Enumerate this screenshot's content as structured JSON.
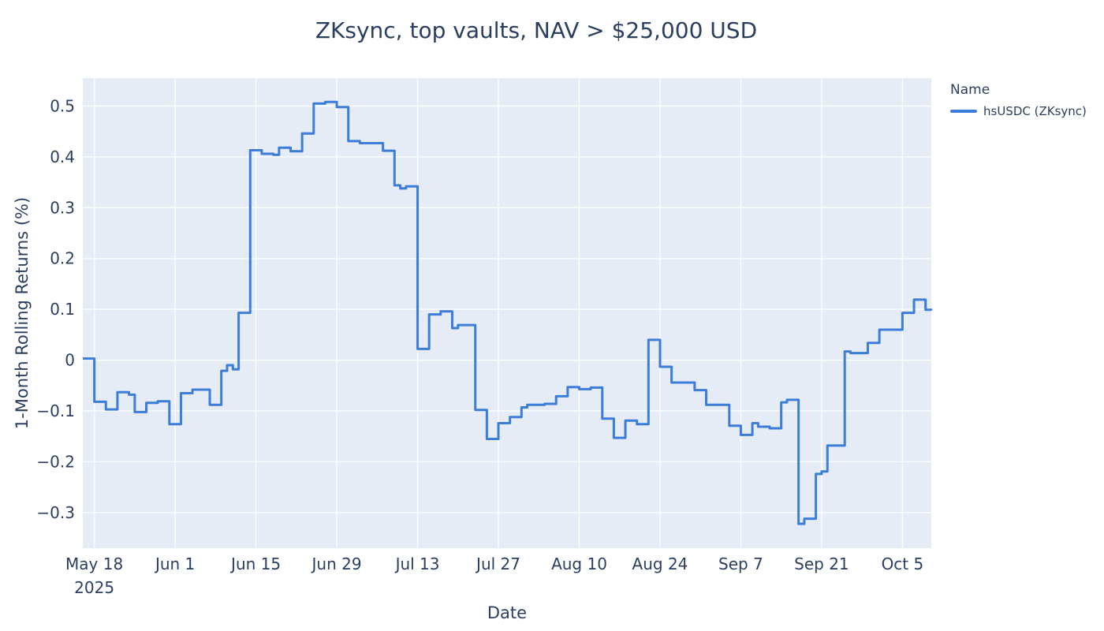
{
  "legend": {
    "title": "Name",
    "position": "right",
    "items": [
      {
        "label": "hsUSDC (ZKsync)",
        "color": "#3b7dd8"
      }
    ]
  },
  "colors": {
    "paper_bg": "#ffffff",
    "plot_bg": "#e5ecf6",
    "grid": "#ffffff",
    "text": "#2a3f5f",
    "line": "#3b7dd8"
  },
  "chart_data": {
    "type": "line",
    "line_shape": "step-after",
    "title": "ZKsync, top vaults, NAV > $25,000 USD",
    "xlabel": "Date",
    "ylabel": "1-Month Rolling Returns (%)",
    "x_range": [
      "2025-05-16",
      "2025-10-10"
    ],
    "ylim": [
      -0.37,
      0.555
    ],
    "grid": true,
    "legend_position": "right",
    "x_ticks": [
      {
        "date": "2025-05-18",
        "label": "May 18",
        "sublabel": "2025"
      },
      {
        "date": "2025-06-01",
        "label": "Jun 1"
      },
      {
        "date": "2025-06-15",
        "label": "Jun 15"
      },
      {
        "date": "2025-06-29",
        "label": "Jun 29"
      },
      {
        "date": "2025-07-13",
        "label": "Jul 13"
      },
      {
        "date": "2025-07-27",
        "label": "Jul 27"
      },
      {
        "date": "2025-08-10",
        "label": "Aug 10"
      },
      {
        "date": "2025-08-24",
        "label": "Aug 24"
      },
      {
        "date": "2025-09-07",
        "label": "Sep 7"
      },
      {
        "date": "2025-09-21",
        "label": "Sep 21"
      },
      {
        "date": "2025-10-05",
        "label": "Oct 5"
      }
    ],
    "y_ticks": [
      {
        "value": 0.5,
        "label": "0.5"
      },
      {
        "value": 0.4,
        "label": "0.4"
      },
      {
        "value": 0.3,
        "label": "0.3"
      },
      {
        "value": 0.2,
        "label": "0.2"
      },
      {
        "value": 0.1,
        "label": "0.1"
      },
      {
        "value": 0,
        "label": "0"
      },
      {
        "value": -0.1,
        "label": "−0.1"
      },
      {
        "value": -0.2,
        "label": "−0.2"
      },
      {
        "value": -0.3,
        "label": "−0.3"
      }
    ],
    "series": [
      {
        "name": "hsUSDC (ZKsync)",
        "color": "#3b7dd8",
        "points": [
          [
            "2025-05-16",
            0.003
          ],
          [
            "2025-05-18",
            -0.082
          ],
          [
            "2025-05-20",
            -0.097
          ],
          [
            "2025-05-22",
            -0.063
          ],
          [
            "2025-05-24",
            -0.068
          ],
          [
            "2025-05-25",
            -0.102
          ],
          [
            "2025-05-27",
            -0.084
          ],
          [
            "2025-05-29",
            -0.081
          ],
          [
            "2025-05-31",
            -0.126
          ],
          [
            "2025-06-02",
            -0.065
          ],
          [
            "2025-06-04",
            -0.058
          ],
          [
            "2025-06-07",
            -0.088
          ],
          [
            "2025-06-09",
            -0.021
          ],
          [
            "2025-06-10",
            -0.01
          ],
          [
            "2025-06-11",
            -0.018
          ],
          [
            "2025-06-12",
            0.093
          ],
          [
            "2025-06-14",
            0.413
          ],
          [
            "2025-06-16",
            0.406
          ],
          [
            "2025-06-18",
            0.404
          ],
          [
            "2025-06-19",
            0.418
          ],
          [
            "2025-06-21",
            0.411
          ],
          [
            "2025-06-23",
            0.446
          ],
          [
            "2025-06-25",
            0.505
          ],
          [
            "2025-06-27",
            0.508
          ],
          [
            "2025-06-29",
            0.498
          ],
          [
            "2025-07-01",
            0.431
          ],
          [
            "2025-07-03",
            0.427
          ],
          [
            "2025-07-07",
            0.412
          ],
          [
            "2025-07-09",
            0.344
          ],
          [
            "2025-07-10",
            0.338
          ],
          [
            "2025-07-11",
            0.342
          ],
          [
            "2025-07-13",
            0.022
          ],
          [
            "2025-07-15",
            0.09
          ],
          [
            "2025-07-17",
            0.096
          ],
          [
            "2025-07-19",
            0.063
          ],
          [
            "2025-07-20",
            0.069
          ],
          [
            "2025-07-23",
            -0.098
          ],
          [
            "2025-07-25",
            -0.155
          ],
          [
            "2025-07-27",
            -0.124
          ],
          [
            "2025-07-29",
            -0.112
          ],
          [
            "2025-07-31",
            -0.093
          ],
          [
            "2025-08-01",
            -0.088
          ],
          [
            "2025-08-04",
            -0.086
          ],
          [
            "2025-08-06",
            -0.071
          ],
          [
            "2025-08-08",
            -0.053
          ],
          [
            "2025-08-10",
            -0.057
          ],
          [
            "2025-08-12",
            -0.054
          ],
          [
            "2025-08-14",
            -0.115
          ],
          [
            "2025-08-16",
            -0.153
          ],
          [
            "2025-08-18",
            -0.119
          ],
          [
            "2025-08-20",
            -0.126
          ],
          [
            "2025-08-22",
            0.04
          ],
          [
            "2025-08-24",
            -0.013
          ],
          [
            "2025-08-26",
            -0.044
          ],
          [
            "2025-08-30",
            -0.059
          ],
          [
            "2025-09-01",
            -0.088
          ],
          [
            "2025-09-05",
            -0.129
          ],
          [
            "2025-09-07",
            -0.147
          ],
          [
            "2025-09-09",
            -0.124
          ],
          [
            "2025-09-10",
            -0.131
          ],
          [
            "2025-09-12",
            -0.134
          ],
          [
            "2025-09-14",
            -0.083
          ],
          [
            "2025-09-15",
            -0.078
          ],
          [
            "2025-09-17",
            -0.322
          ],
          [
            "2025-09-18",
            -0.312
          ],
          [
            "2025-09-20",
            -0.224
          ],
          [
            "2025-09-21",
            -0.219
          ],
          [
            "2025-09-22",
            -0.168
          ],
          [
            "2025-09-25",
            0.017
          ],
          [
            "2025-09-26",
            0.014
          ],
          [
            "2025-09-29",
            0.034
          ],
          [
            "2025-10-01",
            0.06
          ],
          [
            "2025-10-05",
            0.093
          ],
          [
            "2025-10-07",
            0.119
          ],
          [
            "2025-10-09",
            0.099
          ],
          [
            "2025-10-10",
            0.098
          ]
        ]
      }
    ]
  }
}
